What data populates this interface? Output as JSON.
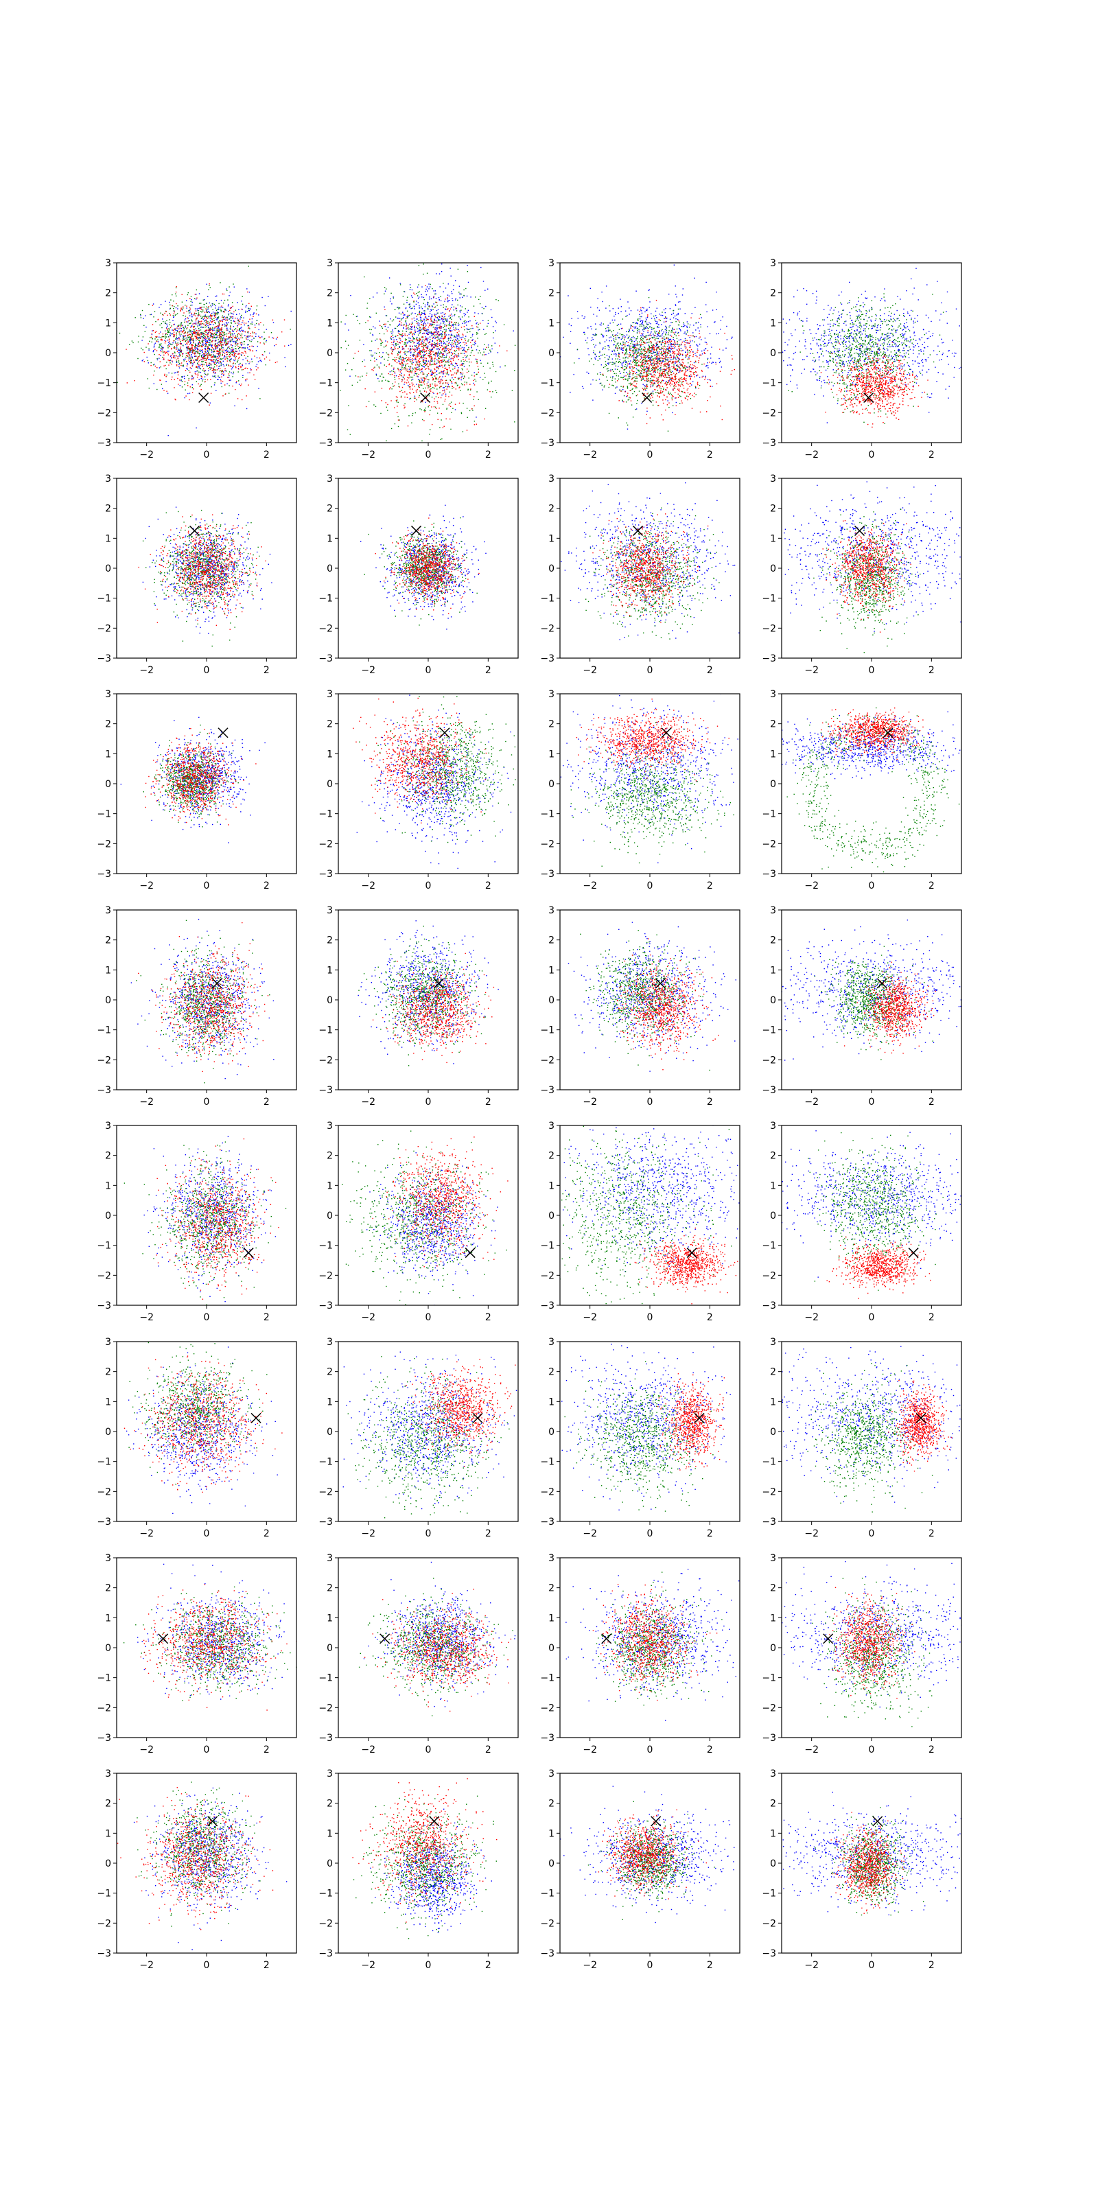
{
  "figure": {
    "rows": 8,
    "cols": 4
  },
  "colors": {
    "red": "#ff0000",
    "green": "#008000",
    "blue": "#0000ff",
    "marker": "#000000",
    "axis": "#000000"
  },
  "chart_data": {
    "type": "scatter",
    "description_of_grid": "8 rows x 4 columns of scatter panels; each row shares a black x marker",
    "xlim": [
      -3,
      3
    ],
    "ylim": [
      -3,
      3
    ],
    "xticks": [
      -2,
      0,
      2
    ],
    "yticks": [
      -3,
      -2,
      -1,
      0,
      1,
      2,
      3
    ],
    "xtick_labels": [
      "−2",
      "0",
      "2"
    ],
    "ytick_labels": [
      "−3",
      "−2",
      "−1",
      "0",
      "1",
      "2",
      "3"
    ],
    "markers": [
      {
        "x": -0.1,
        "y": -1.5
      },
      {
        "x": -0.4,
        "y": 1.25
      },
      {
        "x": 0.55,
        "y": 1.7
      },
      {
        "x": 0.35,
        "y": 0.55
      },
      {
        "x": 1.4,
        "y": -1.25
      },
      {
        "x": 1.65,
        "y": 0.45
      },
      {
        "x": -1.45,
        "y": 0.3
      },
      {
        "x": 0.2,
        "y": 1.4
      }
    ],
    "panels": [
      [
        {
          "red": {
            "cx": 0.0,
            "cy": 0.3,
            "sx": 0.9,
            "sy": 0.7
          },
          "green": {
            "cx": -0.1,
            "cy": 0.5,
            "sx": 0.9,
            "sy": 0.7
          },
          "blue": {
            "cx": 0.1,
            "cy": 0.4,
            "sx": 0.9,
            "sy": 0.75
          }
        },
        {
          "red": {
            "cx": 0.0,
            "cy": -0.2,
            "sx": 0.8,
            "sy": 0.8
          },
          "green": {
            "cx": 0.0,
            "cy": 0.0,
            "sx": 1.1,
            "sy": 1.1
          },
          "blue": {
            "cx": 0.1,
            "cy": 0.6,
            "sx": 0.9,
            "sy": 0.8
          }
        },
        {
          "red": {
            "cx": 0.5,
            "cy": -0.5,
            "sx": 0.7,
            "sy": 0.6
          },
          "green": {
            "cx": -0.2,
            "cy": -0.2,
            "sx": 0.8,
            "sy": 0.7
          },
          "blue": {
            "cx": 0.0,
            "cy": 0.3,
            "sx": 1.1,
            "sy": 0.8
          }
        },
        {
          "red": {
            "cx": 0.2,
            "cy": -1.1,
            "sx": 0.6,
            "sy": 0.45
          },
          "green": {
            "cx": -0.2,
            "cy": 0.0,
            "sx": 0.8,
            "sy": 0.8
          },
          "blue": {
            "cx": 0.0,
            "cy": 0.3,
            "sx": 1.6,
            "sy": 0.8
          }
        }
      ],
      [
        {
          "red": {
            "cx": 0.0,
            "cy": 0.0,
            "sx": 0.65,
            "sy": 0.65
          },
          "green": {
            "cx": -0.1,
            "cy": 0.0,
            "sx": 0.65,
            "sy": 0.65
          },
          "blue": {
            "cx": 0.05,
            "cy": 0.0,
            "sx": 0.7,
            "sy": 0.7
          }
        },
        {
          "red": {
            "cx": 0.0,
            "cy": 0.0,
            "sx": 0.5,
            "sy": 0.5
          },
          "green": {
            "cx": -0.1,
            "cy": 0.0,
            "sx": 0.55,
            "sy": 0.55
          },
          "blue": {
            "cx": 0.1,
            "cy": 0.0,
            "sx": 0.65,
            "sy": 0.65
          }
        },
        {
          "red": {
            "cx": -0.1,
            "cy": 0.0,
            "sx": 0.6,
            "sy": 0.6
          },
          "green": {
            "cx": 0.0,
            "cy": -0.2,
            "sx": 0.8,
            "sy": 0.8
          },
          "blue": {
            "cx": 0.0,
            "cy": 0.3,
            "sx": 1.2,
            "sy": 0.9
          }
        },
        {
          "red": {
            "cx": -0.1,
            "cy": 0.0,
            "sx": 0.5,
            "sy": 0.6
          },
          "green": {
            "cx": -0.1,
            "cy": -0.3,
            "sx": 0.6,
            "sy": 0.8
          },
          "blue": {
            "cx": 0.0,
            "cy": 0.5,
            "sx": 1.6,
            "sy": 0.9
          }
        }
      ],
      [
        {
          "red": {
            "cx": -0.4,
            "cy": 0.2,
            "sx": 0.55,
            "sy": 0.55
          },
          "green": {
            "cx": -0.5,
            "cy": 0.1,
            "sx": 0.5,
            "sy": 0.5
          },
          "blue": {
            "cx": -0.2,
            "cy": 0.2,
            "sx": 0.65,
            "sy": 0.65
          }
        },
        {
          "red": {
            "cx": -0.3,
            "cy": 0.8,
            "sx": 0.75,
            "sy": 0.7
          },
          "green": {
            "cx": 0.8,
            "cy": 0.5,
            "sx": 0.8,
            "sy": 0.8
          },
          "blue": {
            "cx": 0.2,
            "cy": 0.0,
            "sx": 0.9,
            "sy": 0.9
          }
        },
        {
          "red": {
            "cx": -0.1,
            "cy": 1.4,
            "sx": 0.8,
            "sy": 0.4
          },
          "green": {
            "cx": 0.0,
            "cy": -0.4,
            "sx": 0.9,
            "sy": 0.8
          },
          "blue": {
            "cx": 0.0,
            "cy": 0.5,
            "sx": 1.3,
            "sy": 0.9
          }
        },
        {
          "ring": {
            "cx": 0.0,
            "cy": -0.2,
            "r": 2.0,
            "w": 0.35
          },
          "red": {
            "cx": 0.1,
            "cy": 1.75,
            "sx": 0.65,
            "sy": 0.3
          },
          "green": {
            "cx": 0.0,
            "cy": -0.2,
            "sx": 0.3,
            "sy": 0.3
          },
          "blue": {
            "cx": 0.0,
            "cy": 1.2,
            "sx": 1.5,
            "sy": 0.4
          }
        }
      ],
      [
        {
          "red": {
            "cx": 0.1,
            "cy": -0.2,
            "sx": 0.7,
            "sy": 0.8
          },
          "green": {
            "cx": 0.0,
            "cy": -0.1,
            "sx": 0.65,
            "sy": 0.8
          },
          "blue": {
            "cx": 0.1,
            "cy": 0.0,
            "sx": 0.75,
            "sy": 0.85
          }
        },
        {
          "red": {
            "cx": 0.3,
            "cy": -0.3,
            "sx": 0.65,
            "sy": 0.6
          },
          "green": {
            "cx": -0.1,
            "cy": 0.2,
            "sx": 0.7,
            "sy": 0.7
          },
          "blue": {
            "cx": 0.0,
            "cy": 0.3,
            "sx": 0.8,
            "sy": 0.8
          }
        },
        {
          "red": {
            "cx": 0.4,
            "cy": -0.3,
            "sx": 0.6,
            "sy": 0.6
          },
          "green": {
            "cx": -0.3,
            "cy": 0.2,
            "sx": 0.75,
            "sy": 0.7
          },
          "blue": {
            "cx": 0.0,
            "cy": 0.2,
            "sx": 1.0,
            "sy": 0.8
          }
        },
        {
          "red": {
            "cx": 0.8,
            "cy": -0.3,
            "sx": 0.45,
            "sy": 0.5
          },
          "green": {
            "cx": -0.1,
            "cy": 0.0,
            "sx": 0.6,
            "sy": 0.6
          },
          "blue": {
            "cx": 0.0,
            "cy": 0.3,
            "sx": 1.6,
            "sy": 0.8
          }
        }
      ],
      [
        {
          "red": {
            "cx": 0.3,
            "cy": -0.3,
            "sx": 0.7,
            "sy": 0.9
          },
          "green": {
            "cx": 0.1,
            "cy": -0.2,
            "sx": 0.75,
            "sy": 0.9
          },
          "blue": {
            "cx": 0.2,
            "cy": 0.0,
            "sx": 0.8,
            "sy": 0.9
          }
        },
        {
          "red": {
            "cx": 0.4,
            "cy": 0.5,
            "sx": 0.7,
            "sy": 0.8
          },
          "green": {
            "cx": -0.3,
            "cy": -0.1,
            "sx": 1.0,
            "sy": 1.0
          },
          "blue": {
            "cx": 0.1,
            "cy": -0.3,
            "sx": 0.75,
            "sy": 0.8
          }
        },
        {
          "red": {
            "cx": 1.2,
            "cy": -1.6,
            "sx": 0.6,
            "sy": 0.35
          },
          "green": {
            "cx": -0.8,
            "cy": 0.0,
            "sx": 1.2,
            "sy": 1.2
          },
          "blue": {
            "cx": 0.2,
            "cy": 0.8,
            "sx": 1.3,
            "sy": 1.0
          }
        },
        {
          "red": {
            "cx": 0.3,
            "cy": -1.7,
            "sx": 0.6,
            "sy": 0.3
          },
          "green": {
            "cx": 0.0,
            "cy": 0.3,
            "sx": 0.8,
            "sy": 0.9
          },
          "blue": {
            "cx": 0.2,
            "cy": 0.6,
            "sx": 1.6,
            "sy": 0.8
          }
        }
      ],
      [
        {
          "red": {
            "cx": -0.2,
            "cy": 0.3,
            "sx": 0.85,
            "sy": 0.85
          },
          "green": {
            "cx": -0.4,
            "cy": 0.8,
            "sx": 0.8,
            "sy": 0.8
          },
          "blue": {
            "cx": -0.3,
            "cy": 0.0,
            "sx": 0.85,
            "sy": 0.85
          }
        },
        {
          "red": {
            "cx": 1.1,
            "cy": 0.8,
            "sx": 0.6,
            "sy": 0.6
          },
          "green": {
            "cx": -0.1,
            "cy": -0.4,
            "sx": 1.0,
            "sy": 1.0
          },
          "blue": {
            "cx": 0.0,
            "cy": 0.1,
            "sx": 1.0,
            "sy": 1.0
          }
        },
        {
          "red": {
            "cx": 1.4,
            "cy": 0.3,
            "sx": 0.4,
            "sy": 0.6
          },
          "green": {
            "cx": -0.3,
            "cy": -0.2,
            "sx": 0.9,
            "sy": 0.9
          },
          "blue": {
            "cx": -0.3,
            "cy": 0.4,
            "sx": 1.2,
            "sy": 1.0
          }
        },
        {
          "red": {
            "cx": 1.6,
            "cy": 0.3,
            "sx": 0.35,
            "sy": 0.55
          },
          "green": {
            "cx": -0.2,
            "cy": -0.2,
            "sx": 0.7,
            "sy": 0.8
          },
          "blue": {
            "cx": 0.0,
            "cy": 0.5,
            "sx": 1.6,
            "sy": 1.0
          }
        }
      ],
      [
        {
          "red": {
            "cx": 0.1,
            "cy": 0.2,
            "sx": 0.9,
            "sy": 0.7
          },
          "green": {
            "cx": 0.3,
            "cy": 0.1,
            "sx": 0.9,
            "sy": 0.7
          },
          "blue": {
            "cx": 0.4,
            "cy": 0.2,
            "sx": 0.9,
            "sy": 0.75
          }
        },
        {
          "red": {
            "cx": 0.5,
            "cy": -0.1,
            "sx": 0.8,
            "sy": 0.6
          },
          "green": {
            "cx": 0.2,
            "cy": 0.1,
            "sx": 0.8,
            "sy": 0.7
          },
          "blue": {
            "cx": 0.4,
            "cy": 0.3,
            "sx": 0.8,
            "sy": 0.7
          }
        },
        {
          "red": {
            "cx": -0.1,
            "cy": 0.2,
            "sx": 0.6,
            "sy": 0.7
          },
          "green": {
            "cx": 0.0,
            "cy": 0.0,
            "sx": 0.7,
            "sy": 0.7
          },
          "blue": {
            "cx": 0.3,
            "cy": 0.3,
            "sx": 1.1,
            "sy": 0.8
          }
        },
        {
          "red": {
            "cx": -0.1,
            "cy": 0.2,
            "sx": 0.5,
            "sy": 0.65
          },
          "green": {
            "cx": 0.1,
            "cy": -0.3,
            "sx": 0.7,
            "sy": 0.9
          },
          "blue": {
            "cx": 0.3,
            "cy": 0.4,
            "sx": 1.6,
            "sy": 0.8
          }
        }
      ],
      [
        {
          "red": {
            "cx": -0.3,
            "cy": 0.2,
            "sx": 0.8,
            "sy": 0.8
          },
          "green": {
            "cx": -0.2,
            "cy": 0.5,
            "sx": 0.7,
            "sy": 0.8
          },
          "blue": {
            "cx": 0.0,
            "cy": 0.3,
            "sx": 0.8,
            "sy": 0.8
          }
        },
        {
          "red": {
            "cx": -0.2,
            "cy": 0.6,
            "sx": 0.75,
            "sy": 0.8
          },
          "green": {
            "cx": -0.1,
            "cy": 0.0,
            "sx": 0.8,
            "sy": 0.8
          },
          "blue": {
            "cx": 0.1,
            "cy": -0.5,
            "sx": 0.65,
            "sy": 0.7
          }
        },
        {
          "red": {
            "cx": -0.2,
            "cy": 0.3,
            "sx": 0.55,
            "sy": 0.55
          },
          "green": {
            "cx": 0.0,
            "cy": 0.1,
            "sx": 0.55,
            "sy": 0.55
          },
          "blue": {
            "cx": 0.2,
            "cy": 0.2,
            "sx": 1.1,
            "sy": 0.7
          }
        },
        {
          "red": {
            "cx": -0.1,
            "cy": -0.1,
            "sx": 0.45,
            "sy": 0.55
          },
          "green": {
            "cx": 0.0,
            "cy": 0.0,
            "sx": 0.5,
            "sy": 0.6
          },
          "blue": {
            "cx": 0.0,
            "cy": 0.3,
            "sx": 1.7,
            "sy": 0.7
          }
        }
      ]
    ]
  }
}
